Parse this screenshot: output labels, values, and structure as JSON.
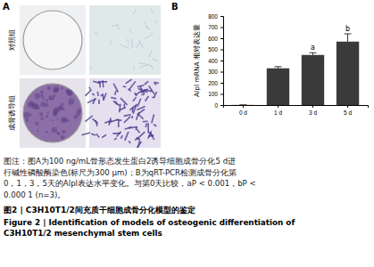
{
  "panel_a": {
    "label": "A",
    "rows": [
      "对照组",
      "成骨诱导组"
    ]
  },
  "chart_data": {
    "type": "bar",
    "panel_label": "B",
    "y_label": "Alpl mRNA 相对表达量",
    "categories": [
      "0 d",
      "1 d",
      "3 d",
      "5 d"
    ],
    "values": [
      1,
      330,
      450,
      570
    ],
    "errors": [
      0.5,
      15,
      20,
      70
    ],
    "annotations": [
      null,
      null,
      "a",
      "b"
    ],
    "color": "#3a3a3a",
    "ylim": [
      0,
      800
    ],
    "yticks": [
      0,
      100,
      200,
      300,
      400,
      500,
      600,
      700,
      800
    ],
    "grid": false
  },
  "caption": {
    "lines": [
      "图注：图A为100 ng/mL骨形态发生蛋白2诱导细胞成骨分化5 d进",
      "行碱性磷酸酶染色(标尺为300 μm)；B为qRT-PCR检测成骨分化第",
      "0，1，3，5天的Alpl表达水平变化。与第0天比较，aP < 0.001，bP <",
      "0.000 1 (n=3)。"
    ],
    "title_zh": "图2 | C3H10T1/2间充质干细胞成骨分化模型的鉴定",
    "title_en": [
      "Figure 2 | Identification of models of osteogenic differentiation of",
      "C3H10T1/2 mesenchymal stem cells"
    ]
  }
}
